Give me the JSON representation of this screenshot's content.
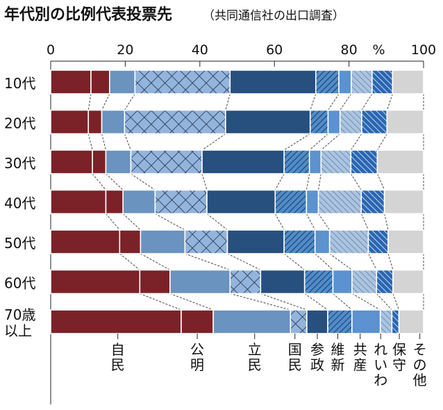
{
  "chart_data": {
    "type": "bar",
    "orientation": "horizontal",
    "stacked": true,
    "title": "年代別の比例代表投票先",
    "subtitle": "（共同通信社の出口調査）",
    "unit_label": "%",
    "xlim": [
      0,
      100
    ],
    "xticks": [
      "0",
      "20",
      "40",
      "60",
      "80",
      "100"
    ],
    "categories": [
      "10代",
      "20代",
      "30代",
      "40代",
      "50代",
      "60代",
      "70歳以上"
    ],
    "series": [
      {
        "name": "自民",
        "color": "#7b2228",
        "pattern": "solid",
        "values": [
          10.8,
          10.1,
          11.2,
          14.8,
          18.5,
          23.9,
          35.0
        ]
      },
      {
        "name": "公明",
        "color": "#7b2228",
        "pattern": "solid",
        "values": [
          5.0,
          3.6,
          3.6,
          4.6,
          5.6,
          8.1,
          8.6
        ]
      },
      {
        "name": "立民",
        "color": "#6a93bf",
        "pattern": "solid",
        "values": [
          6.8,
          6.1,
          6.7,
          8.6,
          11.9,
          16.1,
          20.7
        ]
      },
      {
        "name": "国民",
        "color": "#93b4dc",
        "pattern": "crosshatch",
        "values": [
          25.5,
          27.1,
          19.1,
          13.9,
          11.4,
          8.2,
          4.4
        ]
      },
      {
        "name": "参政",
        "color": "#27507e",
        "pattern": "solid",
        "values": [
          23.0,
          22.7,
          22.0,
          18.3,
          15.2,
          11.8,
          5.6
        ]
      },
      {
        "name": "維新",
        "color": "#4f8cc9",
        "pattern": "stripe-forward",
        "values": [
          6.2,
          4.8,
          6.8,
          8.4,
          8.3,
          7.6,
          6.5
        ]
      },
      {
        "name": "共産",
        "color": "#5b92cf",
        "pattern": "solid",
        "values": [
          3.3,
          3.2,
          3.1,
          3.2,
          3.9,
          5.1,
          7.6
        ]
      },
      {
        "name": "れいわ",
        "color": "#aac4e2",
        "pattern": "stripe-back-light",
        "values": [
          5.6,
          5.8,
          8.0,
          11.5,
          10.4,
          6.6,
          3.1
        ]
      },
      {
        "name": "保守",
        "color": "#2a66b3",
        "pattern": "stripe-back-white",
        "values": [
          5.5,
          6.8,
          7.1,
          6.2,
          5.3,
          4.4,
          1.9
        ]
      },
      {
        "name": "その他",
        "color": "#d4d4d4",
        "pattern": "solid",
        "values": [
          8.3,
          9.8,
          12.4,
          10.5,
          9.5,
          8.2,
          6.6
        ]
      }
    ],
    "party_label_positions": [
      18,
      39.3,
      54.7,
      65.5,
      71.5,
      77,
      83,
      88.5,
      93.5,
      99
    ],
    "grid": false,
    "legend": "bottom (labels under last bar)"
  }
}
